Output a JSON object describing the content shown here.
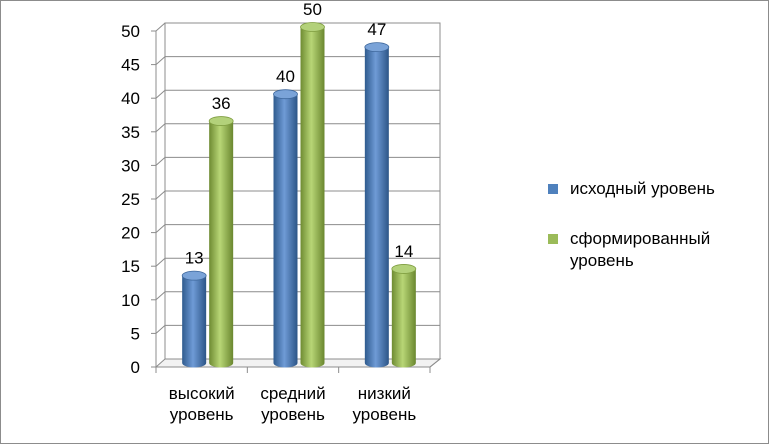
{
  "chart_data": {
    "type": "bar",
    "title": "",
    "xlabel": "",
    "ylabel": "",
    "ylim": [
      0,
      50
    ],
    "yticks": [
      0,
      5,
      10,
      15,
      20,
      25,
      30,
      35,
      40,
      45,
      50
    ],
    "categories": [
      [
        "высокий",
        "уровень"
      ],
      [
        "средний",
        "уровень"
      ],
      [
        "низкий",
        "уровень"
      ]
    ],
    "series": [
      {
        "name": "исходный уровень",
        "color": "#4f81bd",
        "values": [
          13,
          40,
          47
        ]
      },
      {
        "name": "сформированный уровень",
        "color": "#9bbb59",
        "values": [
          36,
          50,
          14
        ]
      }
    ],
    "grid": true,
    "legend_position": "right",
    "style": "3d-cylinder"
  },
  "legend": {
    "items": [
      {
        "label": "исходный уровень",
        "color": "#4f81bd"
      },
      {
        "label": "сформированный уровень",
        "color": "#9bbb59"
      }
    ]
  }
}
